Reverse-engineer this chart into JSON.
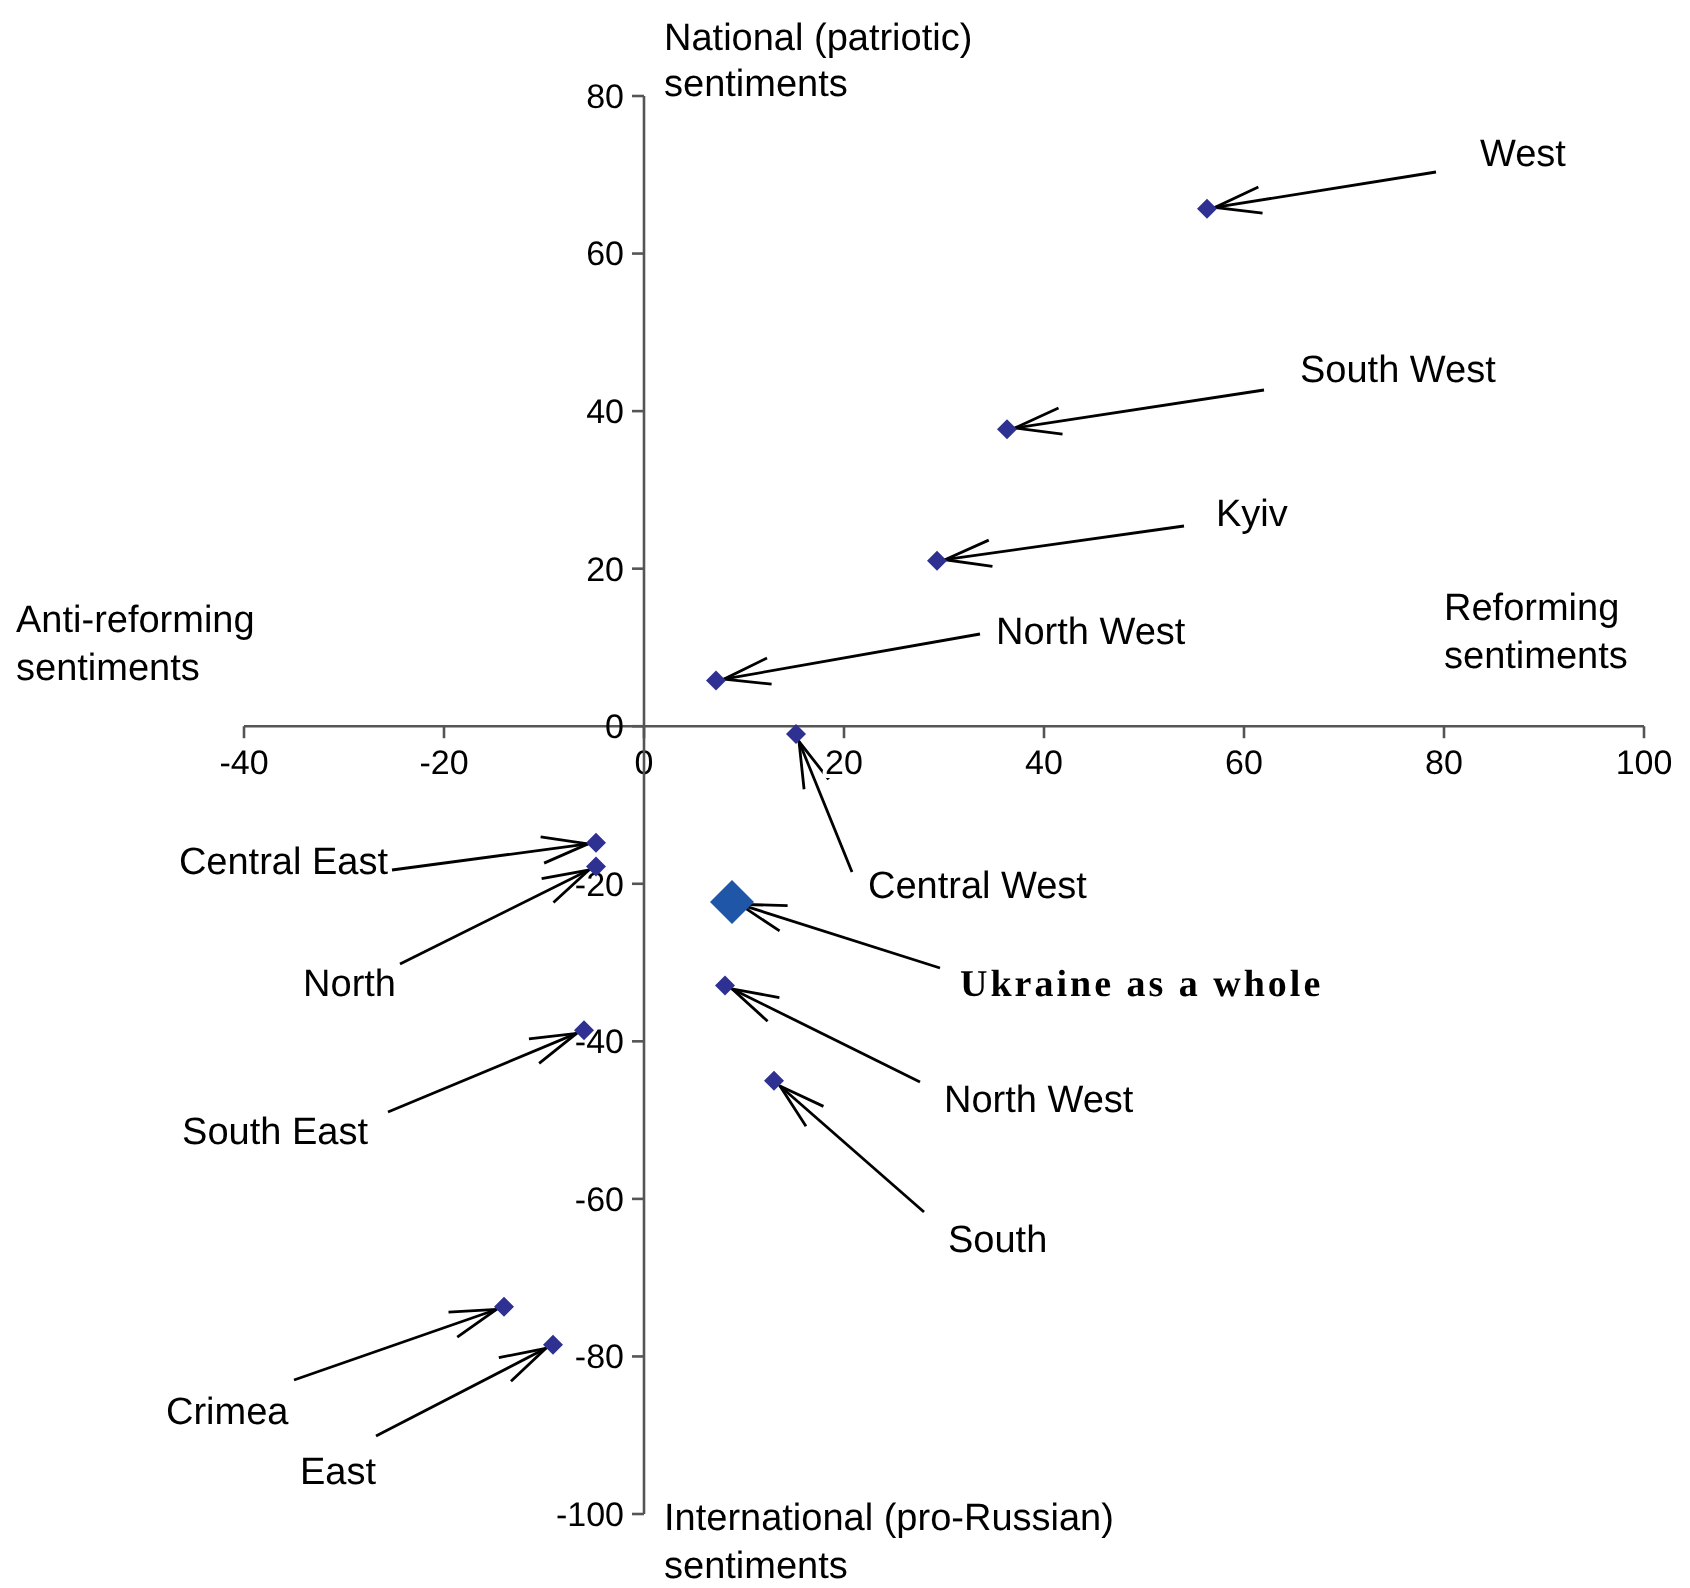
{
  "chart_data": {
    "type": "scatter",
    "xlabel": "Reforming sentiments",
    "ylabel": "National (patriotic) sentiments",
    "xlim": [
      -40,
      100
    ],
    "xticks": [
      -40,
      -20,
      0,
      20,
      40,
      60,
      80,
      100
    ],
    "ylim": [
      -100,
      80
    ],
    "yticks": [
      -100,
      -80,
      -60,
      -40,
      -20,
      0,
      20,
      40,
      60,
      80
    ],
    "grid": false,
    "legend": false,
    "marker": "diamond",
    "series": [
      {
        "color": "#2e3192",
        "x": [
          56.3,
          36.3,
          29.3,
          7.2,
          15.2,
          -4.8,
          -4.8,
          -6,
          8.1,
          13,
          -14,
          -9.1
        ],
        "values": [
          65.7,
          37.7,
          21,
          5.8,
          -1,
          -14.8,
          -17.8,
          -38.6,
          -32.9,
          -45,
          -73.7,
          -78.5
        ]
      },
      {
        "color": "#1f56a8",
        "x": [
          8.8
        ],
        "values": [
          -22.3
        ]
      }
    ],
    "annotations": [
      "Anti-reforming sentiments",
      "International (pro-Russian) sentiments",
      {
        "text": "West",
        "x": 56.3,
        "y": 65.7
      },
      {
        "text": "South West",
        "x": 36.3,
        "y": 37.7
      },
      {
        "text": "Kyiv",
        "x": 29.3,
        "y": 21
      },
      {
        "text": "North West",
        "x": 7.2,
        "y": 5.8
      },
      {
        "text": "Central West",
        "x": 15.2,
        "y": -1
      },
      {
        "text": "Central East",
        "x": -4.8,
        "y": -14.8
      },
      {
        "text": "North",
        "x": -4.8,
        "y": -17.8
      },
      {
        "text": "South East",
        "x": -6,
        "y": -38.6
      },
      {
        "text": "North West",
        "x": 8.1,
        "y": -32.9
      },
      {
        "text": "South",
        "x": 13,
        "y": -45
      },
      {
        "text": "Crimea",
        "x": -14,
        "y": -73.7
      },
      {
        "text": "East",
        "x": -9.1,
        "y": -78.5
      },
      {
        "text": "Ukraine as a whole",
        "x": 8.8,
        "y": -22.3
      }
    ]
  }
}
